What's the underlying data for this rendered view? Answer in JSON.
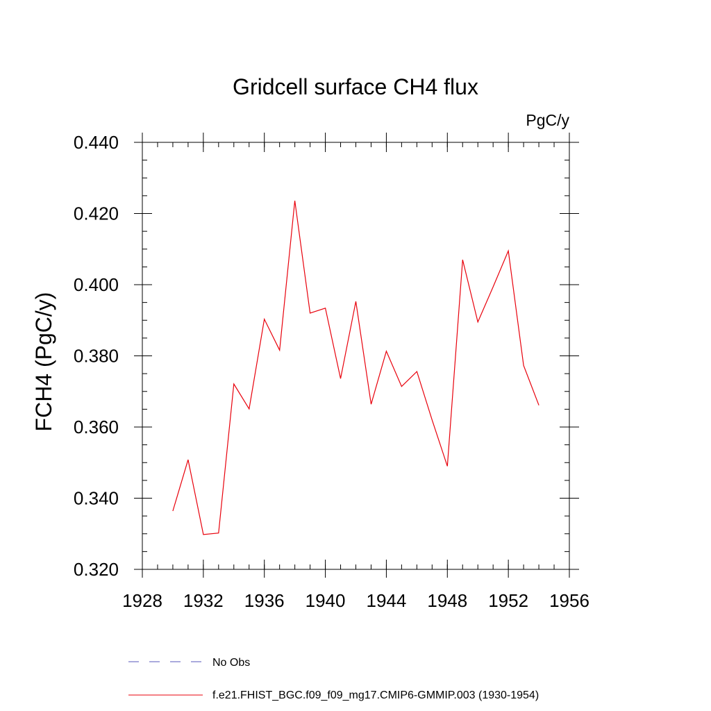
{
  "chart_data": {
    "type": "line",
    "title": "Gridcell surface CH4 flux",
    "units": "PgC/y",
    "xlabel": "",
    "ylabel": "FCH4  (PgC/y)",
    "xlim": [
      1928,
      1956
    ],
    "ylim": [
      0.32,
      0.44
    ],
    "x_ticks": [
      1928,
      1932,
      1936,
      1940,
      1944,
      1948,
      1952,
      1956
    ],
    "y_ticks": [
      0.32,
      0.34,
      0.36,
      0.38,
      0.4,
      0.42,
      0.44
    ],
    "x_tick_labels": [
      "1928",
      "1932",
      "1936",
      "1940",
      "1944",
      "1948",
      "1952",
      "1956"
    ],
    "y_tick_labels": [
      "0.320",
      "0.340",
      "0.360",
      "0.380",
      "0.400",
      "0.420",
      "0.440"
    ],
    "x_minor_step": 1,
    "y_minor_step": 0.005,
    "series": [
      {
        "name": "f.e21.FHIST_BGC.f09_f09_mg17.CMIP6-GMMIP.003 (1930-1954)",
        "color": "#e8000b",
        "dash": "solid",
        "x": [
          1930,
          1931,
          1932,
          1933,
          1934,
          1935,
          1936,
          1937,
          1938,
          1939,
          1940,
          1941,
          1942,
          1943,
          1944,
          1945,
          1946,
          1947,
          1948,
          1949,
          1950,
          1951,
          1952,
          1953,
          1954
        ],
        "values": [
          0.3364,
          0.3508,
          0.3298,
          0.3302,
          0.3721,
          0.3651,
          0.3903,
          0.3816,
          0.4236,
          0.392,
          0.3934,
          0.3736,
          0.3953,
          0.3664,
          0.3813,
          0.3714,
          0.3756,
          0.362,
          0.349,
          0.407,
          0.3895,
          0.3994,
          0.4095,
          0.3773,
          0.3661
        ]
      }
    ],
    "legend": [
      {
        "label": "No Obs",
        "color": "#5555bb",
        "dash": "dashed"
      },
      {
        "label": "f.e21.FHIST_BGC.f09_f09_mg17.CMIP6-GMMIP.003 (1930-1954)",
        "color": "#e8000b",
        "dash": "solid"
      }
    ],
    "legend_position": "bottom-center"
  }
}
